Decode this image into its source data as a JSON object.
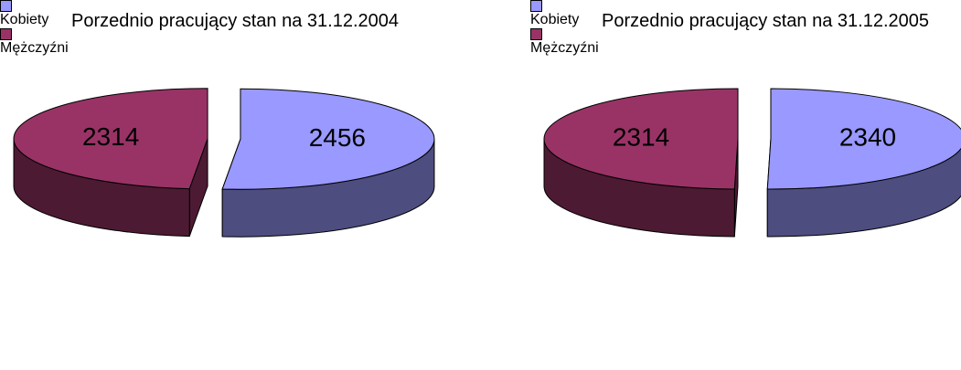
{
  "chart_data": [
    {
      "type": "pie",
      "title": "Porzednio pracujący stan na 31.12.2004",
      "categories": [
        "Kobiety",
        "Mężczyźni"
      ],
      "values": [
        2456,
        2314
      ],
      "colors": [
        "#9999ff",
        "#993366"
      ],
      "legend": "bottom"
    },
    {
      "type": "pie",
      "title": "Porzednio pracujący stan na 31.12.2005",
      "categories": [
        "Kobiety",
        "Mężczyźni"
      ],
      "values": [
        2340,
        2314
      ],
      "colors": [
        "#9999ff",
        "#993366"
      ],
      "legend": "bottom"
    }
  ]
}
